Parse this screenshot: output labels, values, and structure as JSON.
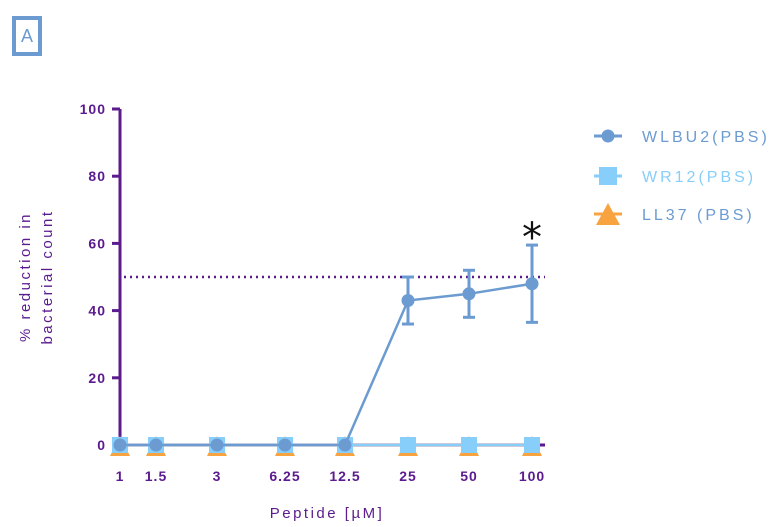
{
  "panel_label": "A",
  "colors": {
    "axis": "#5b1a8e",
    "wlbu2": "#6b9bd1",
    "wr12": "#87cefa",
    "ll37": "#f7a440",
    "legend_text_1": "#6b9bd1",
    "legend_text_2": "#87cefa",
    "legend_text_3": "#6b9bd1"
  },
  "chart_data": {
    "type": "line",
    "categories": [
      "1",
      "1.5",
      "3",
      "6.25",
      "12.5",
      "25",
      "50",
      "100"
    ],
    "xlabel": "Peptide [µM]",
    "ylabel_lines": [
      "% reduction in",
      "bacterial count"
    ],
    "ylim": [
      0,
      100
    ],
    "yticks": [
      "0",
      "20",
      "40",
      "60",
      "80",
      "100"
    ],
    "reference_line": 50,
    "annotation": "*",
    "annotation_category": "100",
    "legend_position": "right",
    "series": [
      {
        "name": "WLBU2(PBS)",
        "marker": "circle",
        "values": [
          0,
          0,
          0,
          0,
          0,
          43,
          45,
          48
        ],
        "errors": [
          0,
          0,
          0,
          0,
          0,
          7,
          7,
          11.5
        ]
      },
      {
        "name": "WR12(PBS)",
        "marker": "square",
        "values": [
          0,
          0,
          0,
          0,
          0,
          0,
          0,
          0
        ],
        "errors": [
          0,
          0,
          0,
          0,
          0,
          0,
          0,
          0
        ]
      },
      {
        "name": "LL37 (PBS)",
        "marker": "triangle",
        "values": [
          0,
          0,
          0,
          0,
          0,
          0,
          0,
          0
        ],
        "errors": [
          0,
          0,
          0,
          0,
          0,
          0,
          0,
          0
        ]
      }
    ]
  }
}
